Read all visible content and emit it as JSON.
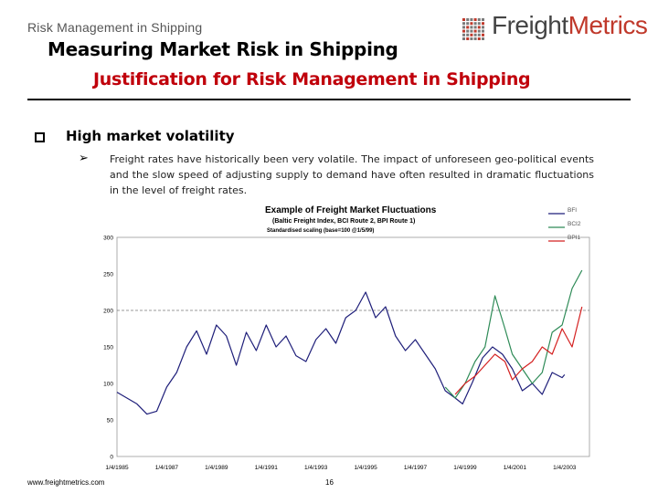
{
  "header": {
    "section_label": "Risk Management in Shipping",
    "title": "Measuring Market Risk in Shipping",
    "subtitle": "Justification for Risk Management in Shipping"
  },
  "logo": {
    "part1": "Freight",
    "part2": "Metrics"
  },
  "content": {
    "bullet_heading": "High market volatility",
    "bullet_body": "Freight rates have historically been very volatile. The impact of unforeseen geo-political events and the slow speed of adjusting supply to demand have often resulted in dramatic fluctuations in the level of freight rates."
  },
  "chart_data": {
    "type": "line",
    "title": "Example of Freight Market Fluctuations",
    "subtitle": "(Baltic Freight Index, BCI Route 2, BPI Route 1)",
    "scaling_note": "Standardised scaling (base=100 @1/5/99)",
    "x_ticks": [
      "1/4/1985",
      "1/4/1987",
      "1/4/1989",
      "1/4/1991",
      "1/4/1993",
      "1/4/1995",
      "1/4/1997",
      "1/4/1999",
      "1/4/2001",
      "1/4/2003"
    ],
    "y_ticks": [
      "0",
      "50",
      "100",
      "150",
      "200",
      "250",
      "300"
    ],
    "ylim": [
      0,
      300
    ],
    "reference_line": 200,
    "legend_position": "top-right",
    "series": [
      {
        "name": "BFI",
        "color": "#1f1f7a",
        "points": [
          [
            1985.0,
            88
          ],
          [
            1985.4,
            80
          ],
          [
            1985.8,
            72
          ],
          [
            1986.2,
            58
          ],
          [
            1986.6,
            62
          ],
          [
            1987.0,
            95
          ],
          [
            1987.4,
            115
          ],
          [
            1987.8,
            150
          ],
          [
            1988.2,
            172
          ],
          [
            1988.6,
            140
          ],
          [
            1989.0,
            180
          ],
          [
            1989.4,
            165
          ],
          [
            1989.8,
            125
          ],
          [
            1990.2,
            170
          ],
          [
            1990.6,
            145
          ],
          [
            1991.0,
            180
          ],
          [
            1991.4,
            150
          ],
          [
            1991.8,
            165
          ],
          [
            1992.2,
            138
          ],
          [
            1992.6,
            130
          ],
          [
            1993.0,
            160
          ],
          [
            1993.4,
            175
          ],
          [
            1993.8,
            155
          ],
          [
            1994.2,
            190
          ],
          [
            1994.6,
            200
          ],
          [
            1995.0,
            225
          ],
          [
            1995.4,
            190
          ],
          [
            1995.8,
            205
          ],
          [
            1996.2,
            165
          ],
          [
            1996.6,
            145
          ],
          [
            1997.0,
            160
          ],
          [
            1997.4,
            140
          ],
          [
            1997.8,
            120
          ],
          [
            1998.2,
            90
          ],
          [
            1998.6,
            80
          ],
          [
            1998.9,
            72
          ],
          [
            1999.3,
            102
          ],
          [
            1999.7,
            135
          ],
          [
            2000.1,
            150
          ],
          [
            2000.5,
            140
          ],
          [
            2000.9,
            120
          ],
          [
            2001.3,
            90
          ],
          [
            2001.7,
            100
          ],
          [
            2002.1,
            85
          ],
          [
            2002.5,
            115
          ],
          [
            2002.9,
            108
          ],
          [
            2003.0,
            112
          ]
        ]
      },
      {
        "name": "BCI2",
        "color": "#2e8b57",
        "points": [
          [
            1998.2,
            95
          ],
          [
            1998.6,
            80
          ],
          [
            1999.0,
            100
          ],
          [
            1999.4,
            130
          ],
          [
            1999.8,
            150
          ],
          [
            2000.2,
            220
          ],
          [
            2000.6,
            175
          ],
          [
            2000.9,
            140
          ],
          [
            2001.3,
            120
          ],
          [
            2001.7,
            100
          ],
          [
            2002.1,
            115
          ],
          [
            2002.5,
            170
          ],
          [
            2002.9,
            180
          ],
          [
            2003.3,
            230
          ],
          [
            2003.7,
            255
          ]
        ]
      },
      {
        "name": "BPI1",
        "color": "#d42020",
        "points": [
          [
            1998.6,
            85
          ],
          [
            1999.0,
            100
          ],
          [
            1999.4,
            110
          ],
          [
            1999.8,
            125
          ],
          [
            2000.2,
            140
          ],
          [
            2000.6,
            130
          ],
          [
            2000.9,
            105
          ],
          [
            2001.3,
            120
          ],
          [
            2001.7,
            130
          ],
          [
            2002.1,
            150
          ],
          [
            2002.5,
            140
          ],
          [
            2002.9,
            175
          ],
          [
            2003.3,
            150
          ],
          [
            2003.7,
            205
          ]
        ]
      }
    ]
  },
  "footer": {
    "url": "www.freightmetrics.com",
    "page_number": "16"
  },
  "colors": {
    "accent_red": "#c0000b",
    "logo_red": "#c0392b"
  }
}
